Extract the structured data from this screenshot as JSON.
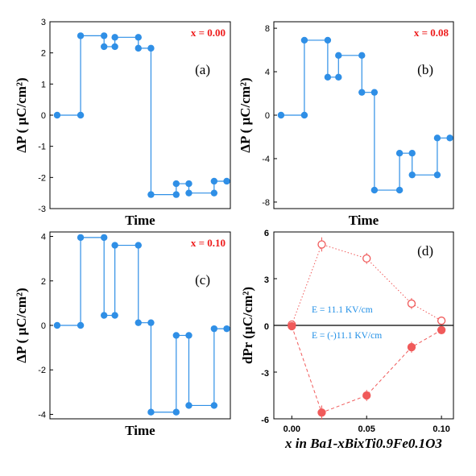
{
  "colors": {
    "blue": "#2f8fe6",
    "red": "#f05a5a",
    "axis": "#000000",
    "comp": "#ee1c1c",
    "ann": "#1e8ee6"
  },
  "chart_data": [
    {
      "type": "line",
      "panel_label": "(a)",
      "composition": "x = 0.00",
      "xlabel": "Time",
      "ylabel": "ΔP ( μC/cm²)",
      "ylim": [
        -3,
        3
      ],
      "yticks": [
        "-3",
        "-2",
        "-1",
        "0",
        "1",
        "2",
        "3"
      ],
      "style": "step-pairs",
      "series": [
        {
          "values": [
            0,
            2.55,
            2.2,
            2.5,
            2.15,
            -2.55,
            -2.2,
            -2.5,
            -2.12
          ]
        }
      ]
    },
    {
      "type": "line",
      "panel_label": "(b)",
      "composition": "x = 0.08",
      "xlabel": "Time",
      "ylabel": "ΔP ( μC/cm²)",
      "ylim": [
        -8.6,
        8.6
      ],
      "yticks": [
        "-8",
        "-4",
        "0",
        "4",
        "8"
      ],
      "style": "step-pairs",
      "series": [
        {
          "values": [
            0,
            6.9,
            3.5,
            5.5,
            2.1,
            -6.9,
            -3.5,
            -5.5,
            -2.1
          ]
        }
      ]
    },
    {
      "type": "line",
      "panel_label": "(c)",
      "composition": "x = 0.10",
      "xlabel": "Time",
      "ylabel": "ΔP ( μC/cm²)",
      "ylim": [
        -4.2,
        4.2
      ],
      "yticks": [
        "-4",
        "-2",
        "0",
        "2",
        "4"
      ],
      "style": "step-pairs",
      "series": [
        {
          "values": [
            0,
            3.95,
            0.45,
            3.6,
            0.12,
            -3.9,
            -0.45,
            -3.6,
            -0.15
          ]
        }
      ]
    },
    {
      "type": "scatter",
      "panel_label": "(d)",
      "xlabel": "x in Ba1-xBixTi0.9Fe0.1O3",
      "ylabel": "dPr (μC/cm²)",
      "xlim": [
        -0.012,
        0.108
      ],
      "ylim": [
        -6,
        6
      ],
      "xticks": [
        "0.00",
        "0.05",
        "0.10"
      ],
      "yticks": [
        "-6",
        "-3",
        "0",
        "3",
        "6"
      ],
      "x": [
        0.0,
        0.02,
        0.05,
        0.08,
        0.1
      ],
      "series": [
        {
          "name": "E = 11.1 KV/cm",
          "values": [
            0.05,
            5.2,
            4.3,
            1.4,
            0.3
          ],
          "marker": "open",
          "line": "dotted"
        },
        {
          "name": "E = (-)11.1 KV/cm",
          "values": [
            -0.05,
            -5.6,
            -4.5,
            -1.4,
            -0.3
          ],
          "marker": "filled",
          "line": "dashed"
        }
      ],
      "errors": [
        [
          0.1,
          0.3,
          0.2,
          0.2,
          0.1
        ],
        [
          0.1,
          0.3,
          0.2,
          0.2,
          0.1
        ]
      ]
    }
  ]
}
